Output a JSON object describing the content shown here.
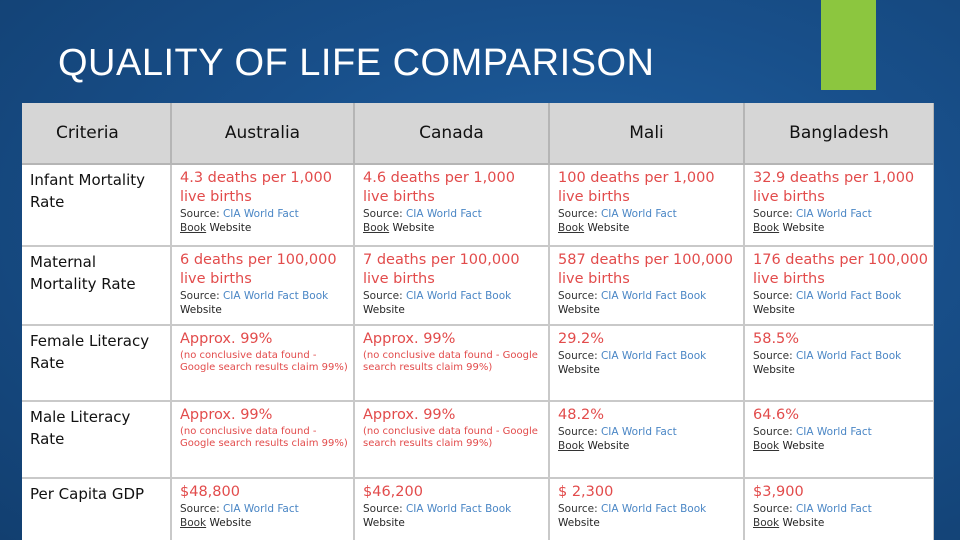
{
  "title": "QUALITY OF LIFE COMPARISON",
  "colors": {
    "accent": "#8cc63f",
    "value": "#e24b4b",
    "link": "#4a86c5",
    "header_bg": "#d6d6d6"
  },
  "headers": [
    "Criteria",
    "Australia",
    "Canada",
    "Mali",
    "Bangladesh"
  ],
  "source": {
    "label": "Source:",
    "link": "CIA World Fact Book",
    "link_a": "CIA World Fact",
    "link_b": "Book",
    "suffix": "Website"
  },
  "rows": [
    {
      "criteria": "Infant Mortality Rate",
      "cells": [
        {
          "value": "4.3 deaths per 1,000 live births",
          "note": ""
        },
        {
          "value": "4.6 deaths per 1,000 live births",
          "note": ""
        },
        {
          "value": "100 deaths per 1,000 live births",
          "note": ""
        },
        {
          "value": "32.9 deaths per 1,000 live births",
          "note": ""
        }
      ]
    },
    {
      "criteria": "Maternal Mortality Rate",
      "cells": [
        {
          "value": "6 deaths per 100,000 live births",
          "note": ""
        },
        {
          "value": "7 deaths per 100,000 live births",
          "note": ""
        },
        {
          "value": "587 deaths per 100,000 live births",
          "note": ""
        },
        {
          "value": "176 deaths per 100,000 live births",
          "note": ""
        }
      ]
    },
    {
      "criteria": "Female Literacy Rate",
      "cells": [
        {
          "value": "Approx. 99%",
          "note": "(no conclusive data found - Google search results claim 99%)"
        },
        {
          "value": "Approx. 99%",
          "note": "(no conclusive data found - Google search results claim 99%)"
        },
        {
          "value": "29.2%",
          "note": ""
        },
        {
          "value": "58.5%",
          "note": ""
        }
      ]
    },
    {
      "criteria": "Male Literacy Rate",
      "cells": [
        {
          "value": "Approx. 99%",
          "note": "(no conclusive data found - Google search results claim 99%)"
        },
        {
          "value": "Approx. 99%",
          "note": "(no conclusive data found - Google search results claim 99%)"
        },
        {
          "value": "48.2%",
          "note": ""
        },
        {
          "value": "64.6%",
          "note": ""
        }
      ]
    },
    {
      "criteria": "Per Capita GDP",
      "cells": [
        {
          "value": "$48,800",
          "note": ""
        },
        {
          "value": "$46,200",
          "note": ""
        },
        {
          "value": "$ 2,300",
          "note": ""
        },
        {
          "value": "$3,900",
          "note": ""
        }
      ]
    }
  ]
}
